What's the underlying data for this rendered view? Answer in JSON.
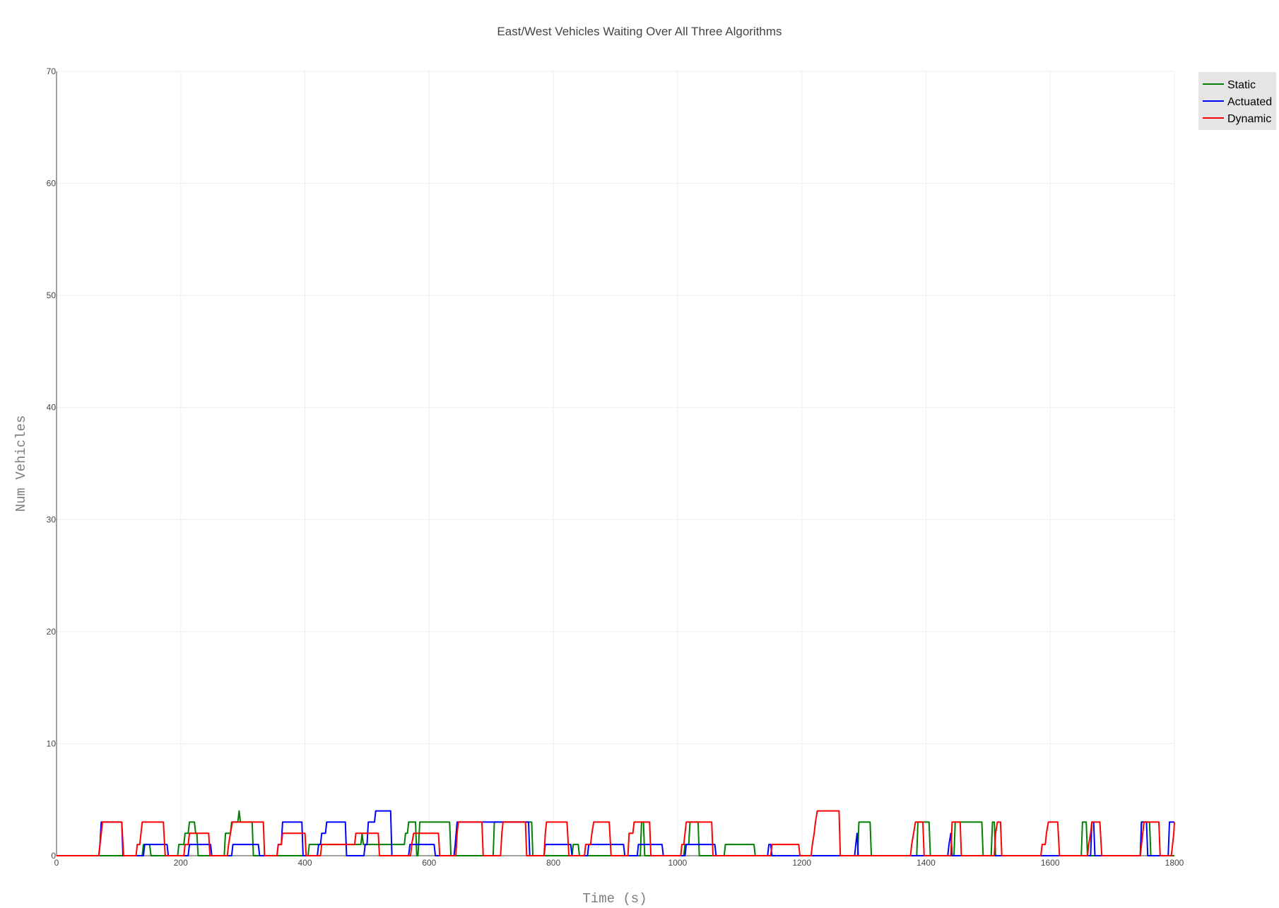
{
  "chart_data": {
    "type": "line",
    "title": "East/West Vehicles Waiting Over All Three Algorithms",
    "xlabel": "Time (s)",
    "ylabel": "Num Vehicles",
    "xlim": [
      0,
      1800
    ],
    "ylim": [
      0,
      70
    ],
    "x_ticks": [
      "0",
      "200",
      "400",
      "600",
      "800",
      "1000",
      "1200",
      "1400",
      "1600",
      "1800"
    ],
    "y_ticks": [
      "0",
      "10",
      "20",
      "30",
      "40",
      "50",
      "60",
      "70"
    ],
    "grid": true,
    "legend_position": "top-right",
    "series": [
      {
        "name": "Static",
        "color": "#008000",
        "points": [
          [
            0,
            0
          ],
          [
            138,
            0
          ],
          [
            140,
            1
          ],
          [
            150,
            1
          ],
          [
            152,
            0
          ],
          [
            195,
            0
          ],
          [
            197,
            1
          ],
          [
            205,
            1
          ],
          [
            207,
            2
          ],
          [
            212,
            2
          ],
          [
            214,
            3
          ],
          [
            222,
            3
          ],
          [
            224,
            2
          ],
          [
            226,
            2
          ],
          [
            228,
            0
          ],
          [
            270,
            0
          ],
          [
            272,
            2
          ],
          [
            280,
            2
          ],
          [
            282,
            3
          ],
          [
            292,
            3
          ],
          [
            294,
            4
          ],
          [
            296,
            3
          ],
          [
            315,
            3
          ],
          [
            317,
            0
          ],
          [
            405,
            0
          ],
          [
            407,
            1
          ],
          [
            490,
            1
          ],
          [
            492,
            2
          ],
          [
            494,
            1
          ],
          [
            560,
            1
          ],
          [
            562,
            2
          ],
          [
            565,
            2
          ],
          [
            567,
            3
          ],
          [
            578,
            3
          ],
          [
            580,
            0
          ],
          [
            582,
            0
          ],
          [
            585,
            3
          ],
          [
            633,
            3
          ],
          [
            635,
            0
          ],
          [
            703,
            0
          ],
          [
            705,
            3
          ],
          [
            765,
            3
          ],
          [
            767,
            0
          ],
          [
            830,
            0
          ],
          [
            832,
            1
          ],
          [
            840,
            1
          ],
          [
            842,
            0
          ],
          [
            940,
            0
          ],
          [
            942,
            3
          ],
          [
            945,
            3
          ],
          [
            947,
            0
          ],
          [
            1010,
            0
          ],
          [
            1012,
            1
          ],
          [
            1018,
            1
          ],
          [
            1020,
            3
          ],
          [
            1033,
            3
          ],
          [
            1035,
            0
          ],
          [
            1075,
            0
          ],
          [
            1077,
            1
          ],
          [
            1123,
            1
          ],
          [
            1125,
            0
          ],
          [
            1290,
            0
          ],
          [
            1292,
            3
          ],
          [
            1310,
            3
          ],
          [
            1312,
            0
          ],
          [
            1385,
            0
          ],
          [
            1387,
            3
          ],
          [
            1405,
            3
          ],
          [
            1407,
            0
          ],
          [
            1445,
            0
          ],
          [
            1447,
            3
          ],
          [
            1490,
            3
          ],
          [
            1492,
            0
          ],
          [
            1505,
            0
          ],
          [
            1507,
            3
          ],
          [
            1510,
            3
          ],
          [
            1512,
            0
          ],
          [
            1650,
            0
          ],
          [
            1652,
            3
          ],
          [
            1658,
            3
          ],
          [
            1660,
            0
          ],
          [
            1745,
            0
          ],
          [
            1747,
            3
          ],
          [
            1760,
            3
          ],
          [
            1762,
            0
          ],
          [
            1800,
            0
          ]
        ]
      },
      {
        "name": "Actuated",
        "color": "#0000ff",
        "points": [
          [
            0,
            0
          ],
          [
            68,
            0
          ],
          [
            70,
            1
          ],
          [
            72,
            3
          ],
          [
            105,
            3
          ],
          [
            107,
            0
          ],
          [
            140,
            0
          ],
          [
            142,
            1
          ],
          [
            178,
            1
          ],
          [
            180,
            0
          ],
          [
            212,
            0
          ],
          [
            214,
            1
          ],
          [
            248,
            1
          ],
          [
            250,
            0
          ],
          [
            282,
            0
          ],
          [
            284,
            1
          ],
          [
            325,
            1
          ],
          [
            327,
            0
          ],
          [
            355,
            0
          ],
          [
            357,
            1
          ],
          [
            362,
            1
          ],
          [
            364,
            3
          ],
          [
            395,
            3
          ],
          [
            397,
            0
          ],
          [
            420,
            0
          ],
          [
            422,
            1
          ],
          [
            425,
            1
          ],
          [
            427,
            2
          ],
          [
            433,
            2
          ],
          [
            435,
            3
          ],
          [
            465,
            3
          ],
          [
            467,
            0
          ],
          [
            495,
            0
          ],
          [
            497,
            1
          ],
          [
            500,
            1
          ],
          [
            502,
            3
          ],
          [
            512,
            3
          ],
          [
            514,
            4
          ],
          [
            538,
            4
          ],
          [
            540,
            0
          ],
          [
            567,
            0
          ],
          [
            569,
            1
          ],
          [
            608,
            1
          ],
          [
            610,
            0
          ],
          [
            640,
            0
          ],
          [
            642,
            1
          ],
          [
            645,
            3
          ],
          [
            760,
            3
          ],
          [
            762,
            0
          ],
          [
            785,
            0
          ],
          [
            787,
            1
          ],
          [
            828,
            1
          ],
          [
            830,
            0
          ],
          [
            855,
            0
          ],
          [
            857,
            1
          ],
          [
            913,
            1
          ],
          [
            915,
            0
          ],
          [
            935,
            0
          ],
          [
            937,
            1
          ],
          [
            975,
            1
          ],
          [
            977,
            0
          ],
          [
            1012,
            0
          ],
          [
            1014,
            1
          ],
          [
            1060,
            1
          ],
          [
            1062,
            0
          ],
          [
            1145,
            0
          ],
          [
            1147,
            1
          ],
          [
            1150,
            1
          ],
          [
            1152,
            0
          ],
          [
            1285,
            0
          ],
          [
            1287,
            1
          ],
          [
            1289,
            2
          ],
          [
            1291,
            0
          ],
          [
            1435,
            0
          ],
          [
            1437,
            1
          ],
          [
            1440,
            2
          ],
          [
            1442,
            0
          ],
          [
            1665,
            0
          ],
          [
            1667,
            3
          ],
          [
            1670,
            3
          ],
          [
            1672,
            0
          ],
          [
            1745,
            0
          ],
          [
            1747,
            3
          ],
          [
            1755,
            3
          ],
          [
            1757,
            0
          ],
          [
            1790,
            0
          ],
          [
            1792,
            3
          ],
          [
            1800,
            3
          ]
        ]
      },
      {
        "name": "Dynamic",
        "color": "#ff0000",
        "points": [
          [
            0,
            0
          ],
          [
            68,
            0
          ],
          [
            70,
            1
          ],
          [
            72,
            2
          ],
          [
            74,
            3
          ],
          [
            105,
            3
          ],
          [
            108,
            0
          ],
          [
            128,
            0
          ],
          [
            130,
            1
          ],
          [
            134,
            1
          ],
          [
            136,
            2
          ],
          [
            138,
            3
          ],
          [
            172,
            3
          ],
          [
            175,
            0
          ],
          [
            205,
            0
          ],
          [
            207,
            1
          ],
          [
            212,
            1
          ],
          [
            214,
            2
          ],
          [
            245,
            2
          ],
          [
            247,
            0
          ],
          [
            275,
            0
          ],
          [
            277,
            1
          ],
          [
            280,
            2
          ],
          [
            283,
            3
          ],
          [
            333,
            3
          ],
          [
            335,
            0
          ],
          [
            355,
            0
          ],
          [
            357,
            1
          ],
          [
            362,
            1
          ],
          [
            364,
            2
          ],
          [
            400,
            2
          ],
          [
            402,
            0
          ],
          [
            425,
            0
          ],
          [
            427,
            1
          ],
          [
            480,
            1
          ],
          [
            482,
            2
          ],
          [
            518,
            2
          ],
          [
            520,
            0
          ],
          [
            570,
            0
          ],
          [
            572,
            1
          ],
          [
            575,
            2
          ],
          [
            615,
            2
          ],
          [
            617,
            0
          ],
          [
            643,
            0
          ],
          [
            645,
            2
          ],
          [
            647,
            3
          ],
          [
            685,
            3
          ],
          [
            687,
            0
          ],
          [
            715,
            0
          ],
          [
            717,
            2
          ],
          [
            719,
            3
          ],
          [
            755,
            3
          ],
          [
            757,
            0
          ],
          [
            785,
            0
          ],
          [
            787,
            2
          ],
          [
            789,
            3
          ],
          [
            822,
            3
          ],
          [
            825,
            0
          ],
          [
            850,
            0
          ],
          [
            852,
            1
          ],
          [
            860,
            1
          ],
          [
            862,
            2
          ],
          [
            865,
            3
          ],
          [
            890,
            3
          ],
          [
            893,
            0
          ],
          [
            920,
            0
          ],
          [
            922,
            2
          ],
          [
            928,
            2
          ],
          [
            930,
            3
          ],
          [
            955,
            3
          ],
          [
            957,
            0
          ],
          [
            1005,
            0
          ],
          [
            1007,
            1
          ],
          [
            1010,
            1
          ],
          [
            1012,
            2
          ],
          [
            1014,
            3
          ],
          [
            1055,
            3
          ],
          [
            1057,
            0
          ],
          [
            1150,
            0
          ],
          [
            1152,
            1
          ],
          [
            1195,
            1
          ],
          [
            1197,
            0
          ],
          [
            1215,
            0
          ],
          [
            1217,
            1
          ],
          [
            1220,
            2
          ],
          [
            1222,
            3
          ],
          [
            1225,
            4
          ],
          [
            1260,
            4
          ],
          [
            1262,
            0
          ],
          [
            1375,
            0
          ],
          [
            1377,
            1
          ],
          [
            1380,
            2
          ],
          [
            1383,
            3
          ],
          [
            1395,
            3
          ],
          [
            1397,
            0
          ],
          [
            1440,
            0
          ],
          [
            1442,
            3
          ],
          [
            1455,
            3
          ],
          [
            1457,
            0
          ],
          [
            1510,
            0
          ],
          [
            1512,
            2
          ],
          [
            1515,
            3
          ],
          [
            1520,
            3
          ],
          [
            1522,
            0
          ],
          [
            1585,
            0
          ],
          [
            1587,
            1
          ],
          [
            1592,
            1
          ],
          [
            1594,
            2
          ],
          [
            1597,
            3
          ],
          [
            1612,
            3
          ],
          [
            1615,
            0
          ],
          [
            1660,
            0
          ],
          [
            1662,
            1
          ],
          [
            1665,
            2
          ],
          [
            1667,
            3
          ],
          [
            1680,
            3
          ],
          [
            1683,
            0
          ],
          [
            1745,
            0
          ],
          [
            1747,
            1
          ],
          [
            1749,
            2
          ],
          [
            1751,
            3
          ],
          [
            1775,
            3
          ],
          [
            1777,
            0
          ],
          [
            1795,
            0
          ],
          [
            1797,
            1
          ],
          [
            1799,
            2
          ],
          [
            1800,
            3
          ]
        ]
      }
    ]
  }
}
